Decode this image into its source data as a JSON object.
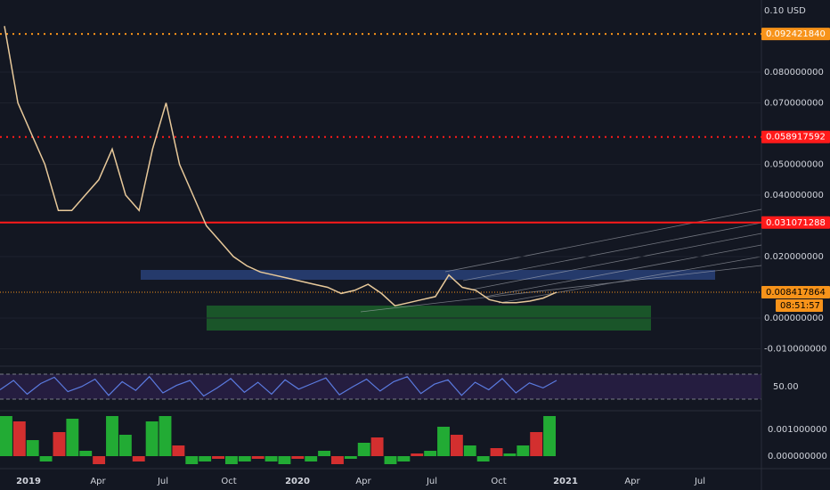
{
  "price_axis": {
    "top_label": "0.10 USD",
    "ticks": [
      {
        "value": 0.08,
        "label": "0.080000000"
      },
      {
        "value": 0.07,
        "label": "0.070000000"
      },
      {
        "value": 0.05,
        "label": "0.050000000"
      },
      {
        "value": 0.04,
        "label": "0.040000000"
      },
      {
        "value": 0.02,
        "label": "0.020000000"
      },
      {
        "value": 0,
        "label": "0.000000000"
      },
      {
        "value": -0.01,
        "label": "-0.010000000"
      }
    ]
  },
  "levels": [
    {
      "value": 0.09242184,
      "label": "0.092421840",
      "color": "#f7931a",
      "style": "dotted"
    },
    {
      "value": 0.058917592,
      "label": "0.058917592",
      "color": "#ff1a1a",
      "style": "dotted"
    },
    {
      "value": 0.031071288,
      "label": "0.031071288",
      "color": "#ff1a1a",
      "style": "solid"
    },
    {
      "value": 0.008417864,
      "label": "0.008417864",
      "color": "#f7931a",
      "style": "price"
    }
  ],
  "countdown": "08:51:57",
  "time_axis": [
    "2019",
    "Apr",
    "Jul",
    "Oct",
    "2020",
    "Apr",
    "Jul",
    "Oct",
    "2021",
    "Apr",
    "Jul"
  ],
  "price_series": [
    0.095,
    0.07,
    0.06,
    0.05,
    0.035,
    0.035,
    0.04,
    0.045,
    0.055,
    0.04,
    0.035,
    0.055,
    0.07,
    0.05,
    0.04,
    0.03,
    0.025,
    0.02,
    0.017,
    0.015,
    0.014,
    0.013,
    0.012,
    0.011,
    0.01,
    0.008,
    0.009,
    0.011,
    0.008,
    0.004,
    0.005,
    0.006,
    0.007,
    0.014,
    0.01,
    0.009,
    0.006,
    0.005,
    0.005,
    0.0055,
    0.0065,
    0.0084
  ],
  "rsi_panel": {
    "label": "50.00",
    "values": [
      45,
      60,
      38,
      55,
      65,
      42,
      50,
      62,
      36,
      58,
      44,
      66,
      40,
      52,
      60,
      35,
      48,
      63,
      41,
      57,
      38,
      61,
      46,
      55,
      64,
      37,
      50,
      62,
      43,
      58,
      66,
      39,
      54,
      61,
      36,
      57,
      45,
      63,
      40,
      56,
      48,
      60
    ]
  },
  "histogram_panel": {
    "labels": [
      {
        "value": 0.001,
        "label": "0.001000000"
      },
      {
        "value": 0,
        "label": "0.000000000"
      }
    ],
    "values": [
      0.0015,
      0.0013,
      0.0006,
      -0.0002,
      0.0009,
      0.0014,
      0.0002,
      -0.0003,
      0.0015,
      0.0008,
      -0.0002,
      0.0013,
      0.0015,
      0.0004,
      -0.0003,
      -0.0002,
      -0.0001,
      -0.0003,
      -0.0002,
      -0.0001,
      -0.0002,
      -0.0003,
      -0.0001,
      -0.0002,
      0.0002,
      -0.0003,
      -0.0001,
      0.0005,
      0.0007,
      -0.0003,
      -0.0002,
      0.0001,
      0.0002,
      0.0011,
      0.0008,
      0.0004,
      -0.0002,
      0.0003,
      0.0001,
      0.0004,
      0.0009,
      0.0015
    ]
  }
}
